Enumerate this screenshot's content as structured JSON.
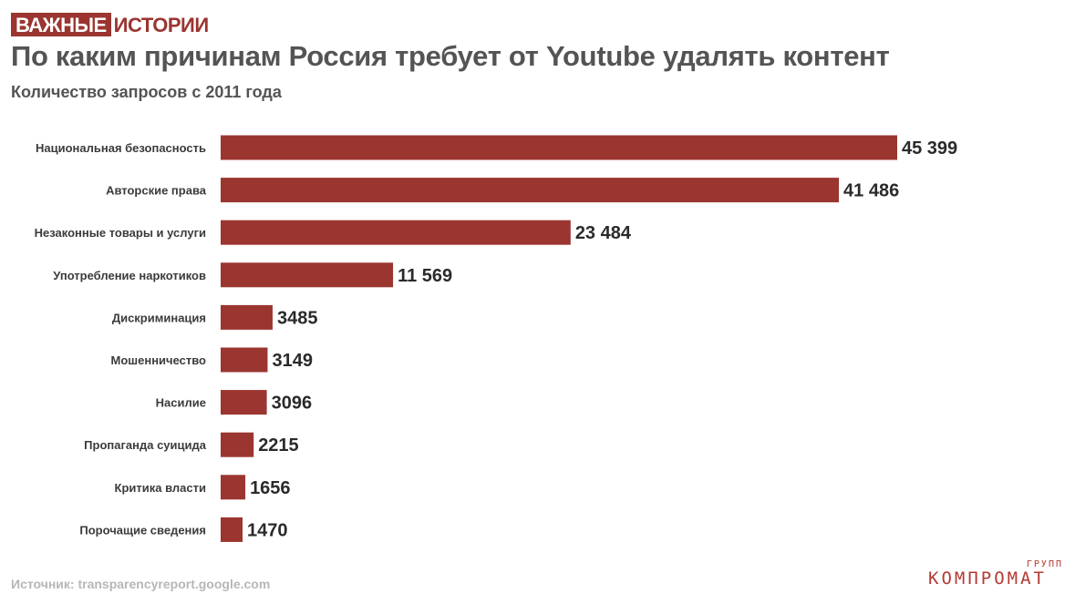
{
  "header": {
    "logo_box": "ВАЖНЫЕ",
    "logo_text": "ИСТОРИИ",
    "title": "По каким причинам Россия требует от Youtube удалять контент",
    "subtitle": "Количество запросов с 2011 года"
  },
  "footer": {
    "source": "Источник: transparencyreport.google.com",
    "brand_small": "ГРУПП",
    "brand_main": "КОМПРОМАТ"
  },
  "colors": {
    "bar": "#9b3530",
    "brand": "#9b3530"
  },
  "chart_data": {
    "type": "bar",
    "orientation": "horizontal",
    "title": "По каким причинам Россия требует от Youtube удалять контент",
    "subtitle": "Количество запросов с 2011 года",
    "categories": [
      "Национальная безопасность",
      "Авторские права",
      "Незаконные товары и услуги",
      "Употребление наркотиков",
      "Дискриминация",
      "Мошенничество",
      "Насилие",
      "Пропаганда суицида",
      "Критика власти",
      "Порочащие сведения"
    ],
    "values": [
      45399,
      41486,
      23484,
      11569,
      3485,
      3149,
      3096,
      2215,
      1656,
      1470
    ],
    "value_labels": [
      "45 399",
      "41 486",
      "23 484",
      "11 569",
      "3485",
      "3149",
      "3096",
      "2215",
      "1656",
      "1470"
    ],
    "xlim": [
      0,
      45399
    ],
    "grid": false,
    "legend": "none"
  }
}
